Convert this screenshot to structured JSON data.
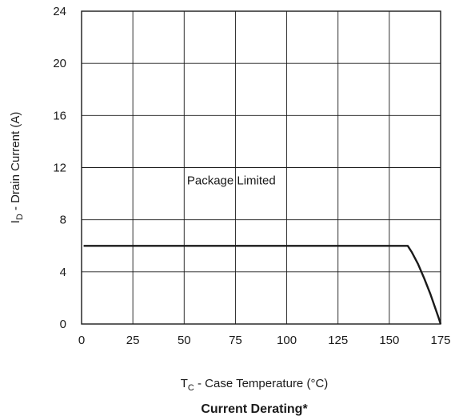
{
  "chart_data": {
    "type": "line",
    "title": "Current Derating*",
    "xlabel": {
      "main": "T",
      "sub": "C",
      "rest": " - Case Temperature (°C)"
    },
    "ylabel": {
      "main": "I",
      "sub": "D",
      "rest": " - Drain Current (A)"
    },
    "xlim": [
      0,
      175
    ],
    "ylim": [
      0,
      24
    ],
    "xticks": [
      0,
      25,
      50,
      75,
      100,
      125,
      150,
      175
    ],
    "yticks": [
      0,
      4,
      8,
      12,
      16,
      20,
      24
    ],
    "grid": true,
    "annotations": [
      {
        "text": "Package Limited",
        "x": 73,
        "y": 10.7
      }
    ],
    "series": [
      {
        "x": [
          1,
          159,
          161,
          164,
          167,
          170,
          172,
          174,
          175
        ],
        "y": [
          6,
          6,
          5.5,
          4.6,
          3.5,
          2.3,
          1.4,
          0.5,
          0
        ]
      }
    ],
    "colors": {
      "line": "#1a1a1a",
      "grid": "#1a1a1a"
    }
  }
}
